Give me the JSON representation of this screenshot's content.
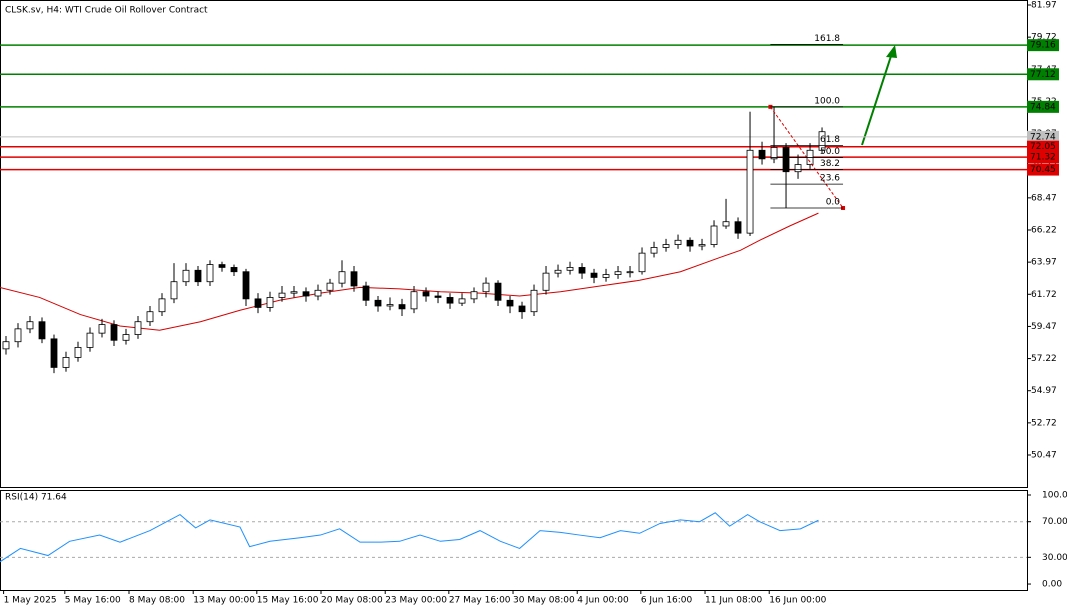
{
  "chart_data": {
    "type": "candlestick",
    "title": "CLSK.sv, H4:  WTI Crude Oil Rollover Contract",
    "xlim": [
      -0.5,
      85.08
    ],
    "ylim": [
      48.16,
      82.32
    ],
    "yticks": [
      81.97,
      79.72,
      77.47,
      75.22,
      72.97,
      70.72,
      68.47,
      66.22,
      63.97,
      61.72,
      59.47,
      57.22,
      54.97,
      52.72,
      50.47
    ],
    "xticks": [
      {
        "value": -0.2,
        "label": "1 May 2025"
      },
      {
        "value": 4.9,
        "label": "5 May 16:00"
      },
      {
        "value": 10.25,
        "label": "8 May 08:00"
      },
      {
        "value": 15.6,
        "label": "13 May 00:00"
      },
      {
        "value": 20.9,
        "label": "15 May 16:00"
      },
      {
        "value": 26.25,
        "label": "20 May 08:00"
      },
      {
        "value": 31.6,
        "label": "23 May 00:00"
      },
      {
        "value": 36.9,
        "label": "27 May 16:00"
      },
      {
        "value": 42.25,
        "label": "30 May 08:00"
      },
      {
        "value": 47.6,
        "label": "4 Jun 00:00"
      },
      {
        "value": 52.9,
        "label": "6 Jun 16:00"
      },
      {
        "value": 58.25,
        "label": "11 Jun 08:00"
      },
      {
        "value": 63.6,
        "label": "16 Jun 00:00"
      }
    ],
    "open": [
      57.9,
      58.4,
      59.3,
      59.8,
      58.6,
      56.6,
      57.3,
      58.0,
      59.0,
      59.6,
      58.5,
      58.9,
      59.8,
      60.5,
      61.4,
      62.6,
      63.4,
      62.6,
      63.8,
      63.6,
      63.3,
      61.4,
      60.8,
      61.5,
      61.8,
      61.9,
      61.6,
      62.0,
      62.5,
      63.3,
      62.3,
      61.3,
      60.9,
      61.0,
      60.7,
      61.9,
      61.6,
      61.5,
      61.1,
      61.4,
      61.9,
      62.5,
      61.3,
      60.9,
      60.5,
      62.0,
      63.2,
      63.4,
      63.6,
      63.2,
      62.9,
      63.1,
      63.3,
      63.3,
      64.6,
      65.0,
      65.2,
      65.5,
      65.1,
      65.2,
      66.5,
      66.8,
      66.0,
      71.8,
      71.2,
      72.0,
      70.3,
      70.8,
      71.8
    ],
    "high": [
      58.8,
      59.7,
      60.2,
      60.1,
      58.9,
      57.7,
      58.4,
      59.4,
      60.0,
      59.9,
      59.3,
      60.2,
      60.9,
      61.8,
      63.9,
      63.9,
      63.7,
      64.1,
      64.0,
      63.8,
      63.5,
      61.8,
      61.9,
      62.3,
      62.3,
      62.2,
      62.4,
      62.8,
      64.1,
      63.7,
      62.6,
      61.6,
      61.5,
      61.4,
      62.3,
      62.2,
      61.9,
      61.8,
      61.8,
      62.2,
      62.9,
      62.7,
      61.6,
      61.2,
      62.4,
      63.7,
      63.8,
      64.0,
      63.9,
      63.5,
      63.5,
      63.7,
      63.7,
      65.0,
      65.4,
      65.6,
      65.9,
      65.7,
      65.6,
      66.9,
      68.4,
      67.1,
      74.5,
      72.4,
      74.84,
      72.3,
      71.5,
      72.3,
      73.4
    ],
    "low": [
      57.5,
      58.0,
      59.0,
      58.3,
      56.2,
      56.3,
      57.0,
      57.7,
      58.7,
      58.1,
      58.2,
      58.6,
      59.5,
      60.2,
      61.1,
      62.3,
      62.3,
      62.3,
      63.3,
      63.0,
      60.9,
      60.4,
      60.5,
      61.2,
      61.5,
      61.2,
      61.3,
      61.7,
      62.2,
      61.9,
      60.9,
      60.5,
      60.6,
      60.2,
      60.4,
      61.2,
      61.1,
      60.7,
      60.9,
      61.1,
      61.5,
      60.9,
      60.4,
      60.0,
      60.2,
      61.7,
      62.9,
      63.1,
      62.8,
      62.5,
      62.6,
      62.8,
      62.9,
      63.1,
      64.3,
      64.7,
      64.9,
      64.7,
      64.8,
      65.0,
      66.3,
      65.6,
      65.8,
      70.8,
      70.9,
      67.76,
      69.8,
      70.5,
      71.6
    ],
    "close": [
      58.4,
      59.3,
      59.8,
      58.6,
      56.6,
      57.3,
      58.0,
      59.0,
      59.6,
      58.5,
      58.9,
      59.8,
      60.5,
      61.4,
      62.6,
      63.4,
      62.6,
      63.8,
      63.6,
      63.3,
      61.4,
      60.8,
      61.5,
      61.8,
      61.9,
      61.6,
      62.0,
      62.5,
      63.3,
      62.3,
      61.3,
      60.9,
      61.0,
      60.7,
      61.9,
      61.6,
      61.5,
      61.1,
      61.4,
      61.9,
      62.5,
      61.3,
      60.9,
      60.5,
      62.0,
      63.2,
      63.4,
      63.6,
      63.2,
      62.9,
      63.1,
      63.3,
      63.3,
      64.6,
      65.0,
      65.2,
      65.5,
      65.1,
      65.2,
      66.5,
      66.8,
      66.0,
      71.8,
      71.2,
      72.0,
      70.3,
      70.8,
      71.8,
      73.1
    ],
    "moving_average": {
      "color": "#d40000",
      "x": [
        -0.5,
        2.8,
        6.2,
        9.5,
        12.8,
        16.2,
        19.5,
        22.8,
        26.2,
        29.5,
        32.8,
        36.2,
        39.5,
        42.8,
        46.2,
        49.5,
        52.8,
        56.2,
        59.5,
        61.2,
        62.8,
        65.3,
        67.7
      ],
      "values": [
        62.2,
        61.5,
        60.3,
        59.5,
        59.2,
        59.8,
        60.6,
        61.3,
        61.8,
        62.2,
        62.1,
        61.9,
        61.8,
        61.6,
        61.9,
        62.3,
        62.7,
        63.3,
        64.3,
        64.8,
        65.5,
        66.5,
        67.4
      ]
    },
    "levels": [
      {
        "value": 79.16,
        "color": "#008000"
      },
      {
        "value": 77.12,
        "color": "#008000"
      },
      {
        "value": 74.84,
        "color": "#008000"
      },
      {
        "value": 72.05,
        "color": "#e00000"
      },
      {
        "value": 71.32,
        "color": "#e00000"
      },
      {
        "value": 70.45,
        "color": "#e00000"
      }
    ],
    "current_price": {
      "value": 72.74,
      "color": "#c0c0c0"
    },
    "fibonacci": {
      "color": "#e00000",
      "x": [
        63.7,
        69.75
      ],
      "start": 74.84,
      "end": 67.76,
      "levels": [
        161.8,
        {
          "value": 100,
          "label": "100.0"
        },
        61.8,
        {
          "value": 50,
          "label": "50.0"
        },
        38.2,
        23.6,
        {
          "value": 0,
          "label": "0.0"
        }
      ]
    },
    "rsi": {
      "type": "line",
      "title": "RSI(14) 71.64",
      "color": "#1e90ff",
      "ylim": [
        -6.7,
        105.6
      ],
      "yticks": [
        {
          "value": 100,
          "label": "100.00"
        },
        {
          "value": 70,
          "label": "70.00"
        },
        {
          "value": 30,
          "label": "30.00"
        },
        {
          "value": 0,
          "label": "0.00"
        }
      ],
      "x": [
        -0.5,
        1.2,
        3.5,
        5.3,
        7.8,
        9.5,
        12,
        14.5,
        15.8,
        17,
        19.5,
        20.3,
        22,
        24.5,
        26.2,
        27.8,
        29.5,
        31.2,
        32.8,
        34.5,
        36.2,
        37.8,
        39.5,
        41.2,
        42.8,
        44.5,
        46.2,
        47.8,
        49.5,
        51.2,
        52.8,
        54.5,
        56.2,
        57.8,
        59.1,
        60.3,
        61.8,
        62.8,
        64.5,
        66.2,
        67.7
      ],
      "values": [
        25,
        40,
        32,
        48,
        55,
        47,
        60,
        78,
        63,
        72,
        64,
        42,
        48,
        52,
        55,
        62,
        47,
        47,
        48,
        55,
        48,
        50,
        60,
        48,
        40,
        60,
        58,
        55,
        52,
        60,
        57,
        68,
        72,
        70,
        80,
        65,
        78,
        70,
        60,
        62,
        71.64
      ]
    }
  }
}
